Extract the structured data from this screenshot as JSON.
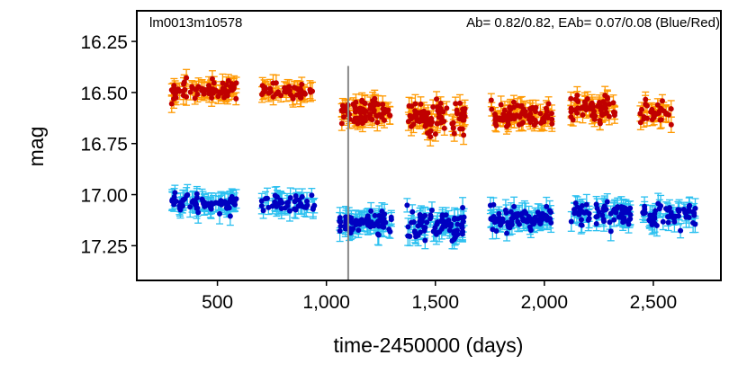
{
  "chart_data": {
    "type": "scatter",
    "title_left": "lm0013m10578",
    "title_right": "Ab= 0.82/0.82, EAb= 0.07/0.08  (Blue/Red)",
    "xlabel": "time-2450000 (days)",
    "ylabel": "mag",
    "xlim": [
      130,
      2810
    ],
    "ylim": [
      17.42,
      16.1
    ],
    "y_inverted": true,
    "grid": false,
    "x_ticks": [
      500,
      1000,
      1500,
      2000,
      2500
    ],
    "x_tick_labels": [
      "500",
      "1,000",
      "1,500",
      "2,000",
      "2,500"
    ],
    "y_ticks": [
      16.25,
      16.5,
      16.75,
      17.0,
      17.25
    ],
    "y_tick_labels": [
      "16.25",
      "16.50",
      "16.75",
      "17.00",
      "17.25"
    ],
    "vline_x": 1100,
    "series": [
      {
        "name": "Red",
        "point_color": "#c00000",
        "error_color": "#ff9900",
        "error": 0.035,
        "segments": [
          {
            "x0": 290,
            "x1": 590,
            "mean": 16.49,
            "spread": 0.045,
            "n": 70
          },
          {
            "x0": 700,
            "x1": 950,
            "mean": 16.49,
            "spread": 0.03,
            "n": 45
          },
          {
            "x0": 1060,
            "x1": 1300,
            "mean": 16.59,
            "spread": 0.055,
            "n": 75
          },
          {
            "x0": 1370,
            "x1": 1640,
            "mean": 16.62,
            "spread": 0.07,
            "n": 80
          },
          {
            "x0": 1750,
            "x1": 2040,
            "mean": 16.61,
            "spread": 0.05,
            "n": 80
          },
          {
            "x0": 2120,
            "x1": 2330,
            "mean": 16.58,
            "spread": 0.05,
            "n": 60
          },
          {
            "x0": 2440,
            "x1": 2590,
            "mean": 16.59,
            "spread": 0.05,
            "n": 30
          }
        ]
      },
      {
        "name": "Blue",
        "point_color": "#0000c0",
        "error_color": "#2bc0f0",
        "error": 0.04,
        "segments": [
          {
            "x0": 290,
            "x1": 590,
            "mean": 17.04,
            "spread": 0.04,
            "n": 70
          },
          {
            "x0": 700,
            "x1": 950,
            "mean": 17.05,
            "spread": 0.035,
            "n": 45
          },
          {
            "x0": 1060,
            "x1": 1300,
            "mean": 17.13,
            "spread": 0.05,
            "n": 75
          },
          {
            "x0": 1370,
            "x1": 1640,
            "mean": 17.15,
            "spread": 0.06,
            "n": 80
          },
          {
            "x0": 1750,
            "x1": 2040,
            "mean": 17.12,
            "spread": 0.05,
            "n": 80
          },
          {
            "x0": 2120,
            "x1": 2400,
            "mean": 17.1,
            "spread": 0.05,
            "n": 70
          },
          {
            "x0": 2440,
            "x1": 2700,
            "mean": 17.1,
            "spread": 0.05,
            "n": 55
          }
        ]
      }
    ]
  }
}
